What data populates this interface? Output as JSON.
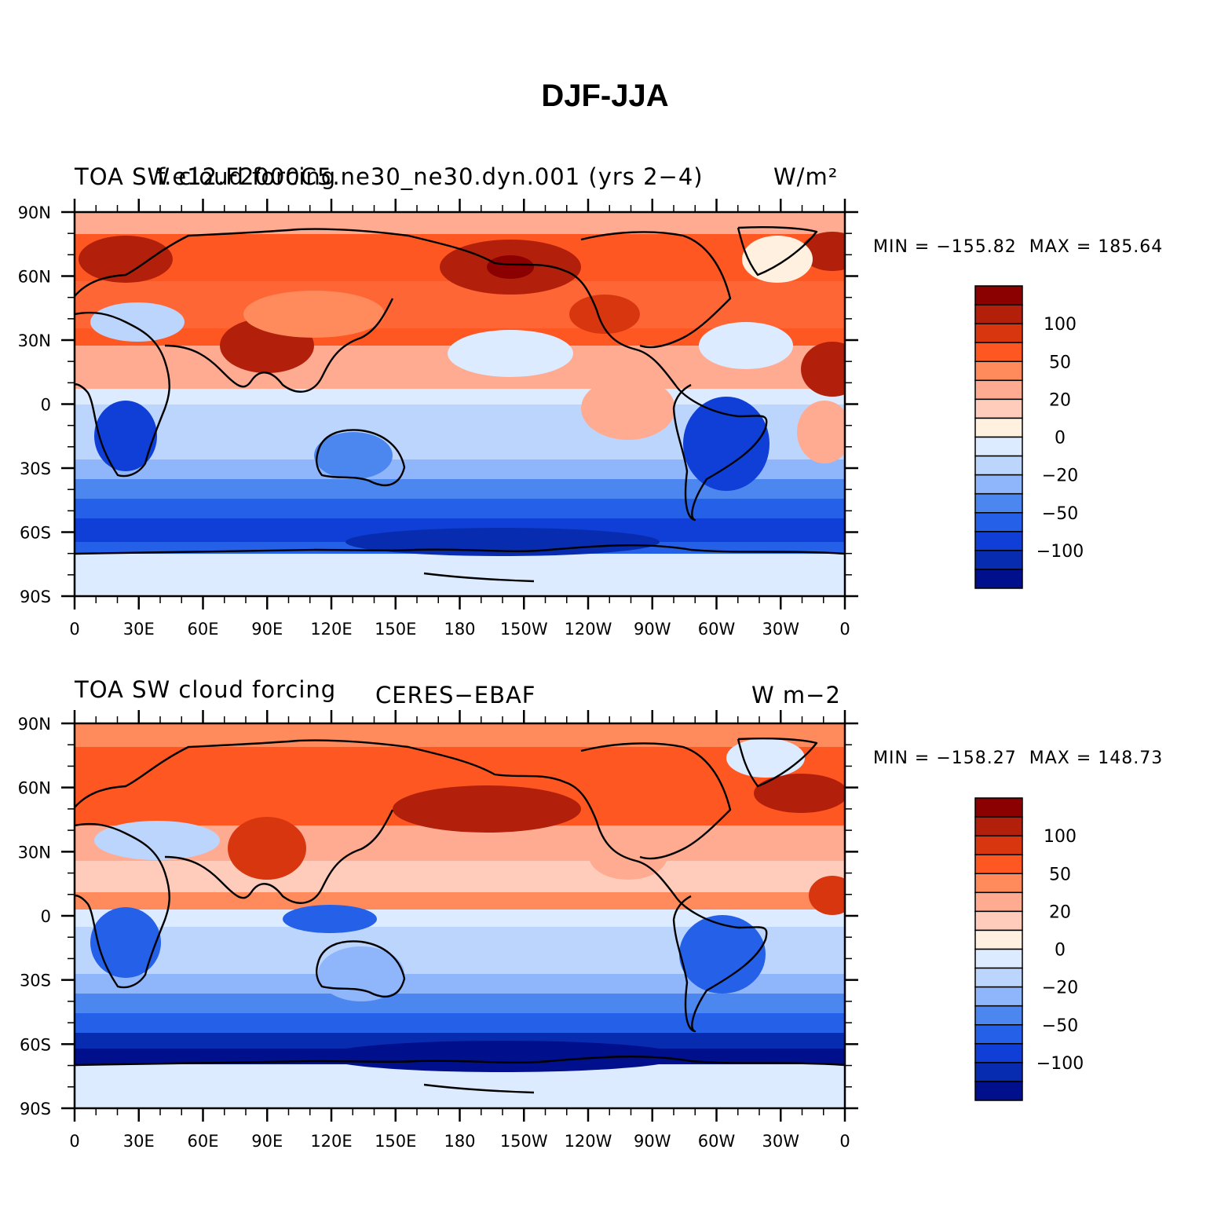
{
  "title": "DJF-JJA",
  "panels": [
    {
      "left_title": "TOA SW cloud forcing",
      "center_title": "f.e12.F2000C5.ne30_ne30.dyn.001 (yrs 2−4)",
      "right_title": "W/m²",
      "min": "MIN = −155.82",
      "max": "MAX = 185.64"
    },
    {
      "left_title": "TOA SW cloud forcing",
      "center_title": "CERES−EBAF",
      "right_title": "W m−2",
      "min": "MIN = −158.27",
      "max": "MAX = 148.73"
    }
  ],
  "lat_labels": [
    "90N",
    "60N",
    "30N",
    "0",
    "30S",
    "60S",
    "90S"
  ],
  "lon_labels": [
    "0",
    "30E",
    "60E",
    "90E",
    "120E",
    "150E",
    "180",
    "150W",
    "120W",
    "90W",
    "60W",
    "30W",
    "0"
  ],
  "colorbar": {
    "colors": [
      "#8b0000",
      "#b2200b",
      "#d8360f",
      "#ff5722",
      "#ff8a5c",
      "#ffab91",
      "#ffccbc",
      "#fff0e0",
      "#dcebff",
      "#bcd5fc",
      "#8fb5fa",
      "#4c87f0",
      "#2560e8",
      "#0f3fd6",
      "#072cb0",
      "#000f8c"
    ],
    "labels": [
      "100",
      "50",
      "20",
      "0",
      "−20",
      "−50",
      "−100"
    ]
  },
  "chart_data": {
    "type": "heatmap",
    "title": "DJF-JJA",
    "panels": [
      {
        "name": "f.e12.F2000C5.ne30_ne30.dyn.001 (yrs 2−4)",
        "variable": "TOA SW cloud forcing",
        "units": "W/m²",
        "min": -155.82,
        "max": 185.64
      },
      {
        "name": "CERES−EBAF",
        "variable": "TOA SW cloud forcing",
        "units": "W m−2",
        "min": -158.27,
        "max": 148.73
      }
    ],
    "x_range": [
      0,
      360
    ],
    "y_range": [
      -90,
      90
    ],
    "contour_levels": [
      -150,
      -125,
      -100,
      -75,
      -50,
      -35,
      -20,
      -10,
      0,
      10,
      20,
      35,
      50,
      75,
      100,
      125,
      150
    ],
    "colorbar_tick_values": [
      100,
      50,
      20,
      0,
      -20,
      -50,
      -100
    ]
  }
}
